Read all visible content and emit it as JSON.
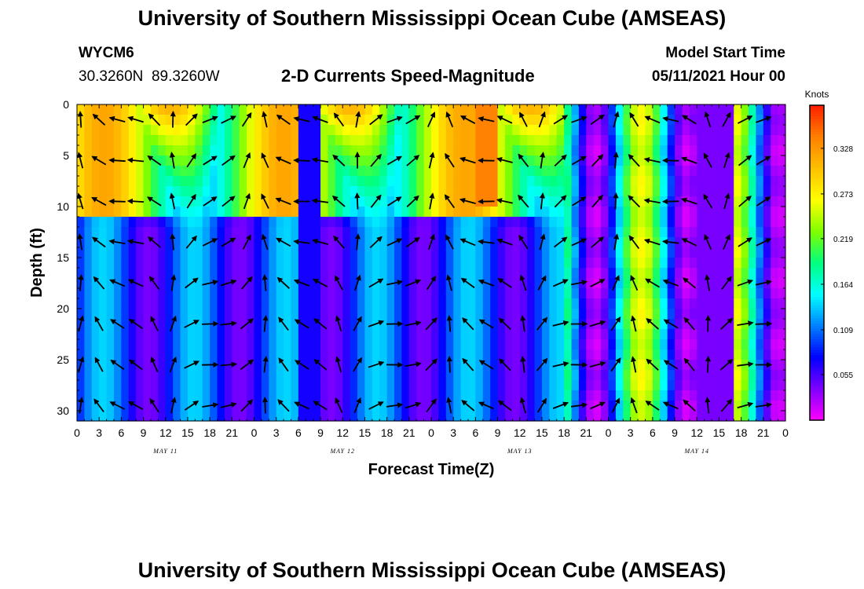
{
  "header": {
    "title_top": "University of Southern Mississippi Ocean Cube (AMSEAS)",
    "station_id": "WYCM6",
    "coordinates": "30.3260N  89.3260W",
    "plot_subtitle": "2-D Currents Speed-Magnitude",
    "model_start_label": "Model Start Time",
    "model_start_value": "05/11/2021 Hour 00",
    "title_bottom": "University of Southern Mississippi Ocean Cube (AMSEAS)"
  },
  "chart_data": {
    "type": "heatmap",
    "title": "2-D Currents Speed-Magnitude",
    "xlabel": "Forecast Time(Z)",
    "ylabel": "Depth (ft)",
    "x_tick_labels": [
      "0",
      "3",
      "6",
      "9",
      "12",
      "15",
      "18",
      "21",
      "0",
      "3",
      "6",
      "9",
      "12",
      "15",
      "18",
      "21",
      "0",
      "3",
      "6",
      "9",
      "12",
      "15",
      "18",
      "21",
      "0",
      "3",
      "6",
      "9",
      "12",
      "15",
      "18",
      "21",
      "0"
    ],
    "x_range_hours": [
      0,
      96
    ],
    "day_labels": [
      {
        "label": "MAY 11",
        "hour": 12
      },
      {
        "label": "MAY 12",
        "hour": 36
      },
      {
        "label": "MAY 13",
        "hour": 60
      },
      {
        "label": "MAY 14",
        "hour": 84
      }
    ],
    "y_tick_labels": [
      "0",
      "5",
      "10",
      "15",
      "20",
      "25",
      "30"
    ],
    "y_range_ft": [
      0,
      31
    ],
    "y_inverted": true,
    "colorbar": {
      "title": "Knots",
      "tick_labels": [
        "0.328",
        "0.273",
        "0.219",
        "0.164",
        "0.109",
        "0.055"
      ],
      "tick_values": [
        0.328,
        0.273,
        0.219,
        0.164,
        0.109,
        0.055
      ],
      "range": [
        0.0,
        0.38
      ],
      "colors": [
        "#ff00ff",
        "#8000ff",
        "#0000ff",
        "#0080ff",
        "#00ffff",
        "#00ff80",
        "#80ff00",
        "#ffff00",
        "#ffc000",
        "#ff8000",
        "#ff2000"
      ]
    },
    "arrows_shown": true
  }
}
